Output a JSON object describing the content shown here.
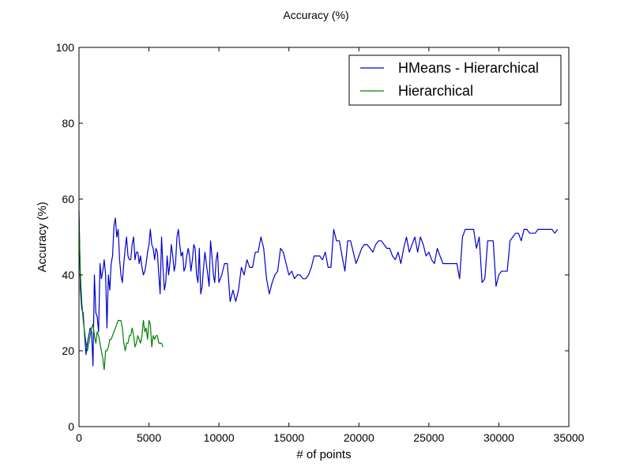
{
  "chart_data": {
    "type": "line",
    "title": "Accuracy (%)",
    "xlabel": "# of points",
    "ylabel": "Accuracy (%)",
    "xlim": [
      0,
      35000
    ],
    "ylim": [
      0,
      100
    ],
    "xticks": [
      0,
      5000,
      10000,
      15000,
      20000,
      25000,
      30000,
      35000
    ],
    "yticks": [
      0,
      20,
      40,
      60,
      80,
      100
    ],
    "grid": false,
    "legend_position": "top-right",
    "series": [
      {
        "name": "HMeans - Hierarchical",
        "color": "#0000cc",
        "x": [
          0,
          100,
          200,
          300,
          400,
          500,
          600,
          700,
          800,
          900,
          1000,
          1100,
          1200,
          1300,
          1400,
          1500,
          1600,
          1700,
          1800,
          1900,
          2000,
          2100,
          2200,
          2300,
          2400,
          2500,
          2600,
          2700,
          2800,
          2900,
          3000,
          3100,
          3200,
          3300,
          3400,
          3500,
          3600,
          3700,
          3800,
          3900,
          4000,
          4100,
          4200,
          4300,
          4400,
          4500,
          4600,
          4700,
          4800,
          4900,
          5000,
          5100,
          5200,
          5300,
          5400,
          5500,
          5600,
          5700,
          5800,
          5900,
          6000,
          6100,
          6200,
          6300,
          6400,
          6500,
          6600,
          6700,
          6800,
          6900,
          7000,
          7100,
          7200,
          7300,
          7400,
          7500,
          7600,
          7700,
          7800,
          7900,
          8000,
          8100,
          8200,
          8300,
          8400,
          8500,
          8600,
          8700,
          8800,
          8900,
          9000,
          9100,
          9200,
          9300,
          9400,
          9500,
          9600,
          9700,
          9800,
          9900,
          10000,
          10200,
          10400,
          10600,
          10800,
          11000,
          11200,
          11400,
          11600,
          11800,
          12000,
          12200,
          12400,
          12600,
          12800,
          13000,
          13200,
          13400,
          13600,
          13800,
          14000,
          14200,
          14400,
          14600,
          14800,
          15000,
          15200,
          15400,
          15600,
          15800,
          16000,
          16200,
          16400,
          16600,
          16800,
          17000,
          17200,
          17400,
          17600,
          17800,
          18000,
          18200,
          18400,
          18600,
          18800,
          19000,
          19200,
          19400,
          19600,
          19800,
          20000,
          20200,
          20400,
          20600,
          20800,
          21000,
          21200,
          21400,
          21600,
          21800,
          22000,
          22200,
          22400,
          22600,
          22800,
          23000,
          23200,
          23400,
          23600,
          23800,
          24000,
          24200,
          24400,
          24600,
          24800,
          25000,
          25200,
          25400,
          25600,
          25800,
          26000,
          26200,
          26400,
          26600,
          26800,
          27000,
          27200,
          27400,
          27600,
          27800,
          28000,
          28200,
          28400,
          28600,
          28800,
          29000,
          29200,
          29400,
          29600,
          29800,
          30000,
          30200,
          30400,
          30600,
          30800,
          31000,
          31200,
          31400,
          31600,
          31800,
          32000,
          32200,
          32400,
          32600,
          32800,
          33000,
          33200,
          33400,
          33600,
          33800,
          34000,
          34200
        ],
        "y": [
          57,
          36,
          31,
          30,
          24,
          19,
          22,
          24,
          26,
          25,
          16,
          40,
          30,
          29,
          25,
          43,
          39,
          41,
          44,
          40,
          26,
          40,
          36,
          43,
          45,
          53,
          55,
          50,
          52,
          44,
          40,
          38,
          43,
          47,
          50,
          45,
          44,
          44,
          48,
          50,
          44,
          46,
          46,
          43,
          45,
          42,
          40,
          41,
          43,
          46,
          48,
          52,
          48,
          47,
          44,
          47,
          46,
          40,
          35,
          50,
          42,
          36,
          38,
          45,
          40,
          43,
          48,
          45,
          41,
          43,
          50,
          52,
          48,
          45,
          46,
          41,
          42,
          45,
          47,
          45,
          41,
          44,
          48,
          47,
          40,
          38,
          47,
          35,
          37,
          42,
          46,
          43,
          40,
          37,
          49,
          45,
          40,
          38,
          44,
          46,
          38,
          40,
          43,
          43,
          33,
          36,
          33,
          36,
          42,
          40,
          44,
          42,
          42,
          46,
          46,
          50,
          47,
          39,
          35,
          38,
          40,
          41,
          47,
          46,
          43,
          40,
          41,
          39,
          40,
          40,
          39,
          39,
          40,
          42,
          45,
          45,
          45,
          44,
          46,
          42,
          42,
          52,
          49,
          49,
          45,
          41,
          49,
          49,
          46,
          43,
          45,
          47,
          48,
          48,
          47,
          46,
          48,
          49,
          49,
          48,
          47,
          47,
          45,
          44,
          46,
          43,
          47,
          50,
          46,
          48,
          50,
          46,
          50,
          48,
          45,
          46,
          44,
          43,
          47,
          45,
          43,
          43,
          43,
          43,
          43,
          43,
          39,
          50,
          52,
          52,
          52,
          52,
          47,
          50,
          38,
          39,
          49,
          49,
          49,
          37,
          40,
          41,
          41,
          41,
          49,
          50,
          51,
          51,
          49,
          52,
          52,
          51,
          51,
          51,
          52,
          52,
          52,
          52,
          52,
          52,
          51,
          52
        ]
      },
      {
        "name": "Hierarchical",
        "color": "#007f00",
        "x": [
          0,
          100,
          200,
          300,
          400,
          500,
          600,
          700,
          800,
          900,
          1000,
          1100,
          1200,
          1300,
          1400,
          1500,
          1600,
          1700,
          1800,
          1900,
          2000,
          2100,
          2200,
          2300,
          2400,
          2500,
          2600,
          2700,
          2800,
          2900,
          3000,
          3100,
          3200,
          3300,
          3400,
          3500,
          3600,
          3700,
          3800,
          3900,
          4000,
          4100,
          4200,
          4300,
          4400,
          4500,
          4600,
          4700,
          4800,
          4900,
          5000,
          5100,
          5200,
          5300,
          5400,
          5500,
          5600,
          5700,
          5800,
          5900,
          6000
        ],
        "y": [
          55,
          40,
          33,
          28,
          25,
          22,
          20,
          22,
          24,
          26,
          27,
          24,
          22,
          25,
          24,
          22,
          20,
          18,
          15,
          20,
          20,
          21,
          23,
          23,
          24,
          25,
          26,
          27,
          28,
          28,
          28,
          26,
          22,
          20,
          22,
          22,
          24,
          24,
          26,
          24,
          21,
          22,
          24,
          23,
          22,
          24,
          28,
          25,
          26,
          23,
          28,
          27,
          21,
          24,
          23,
          24,
          24,
          22,
          22,
          22,
          21
        ]
      }
    ]
  }
}
